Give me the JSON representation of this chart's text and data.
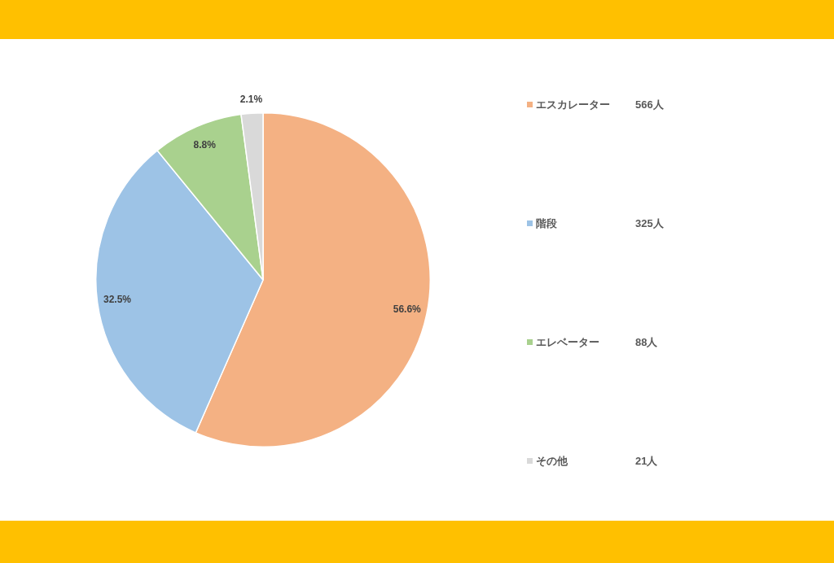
{
  "chart_data": {
    "type": "pie",
    "categories": [
      "エスカレーター",
      "階段",
      "エレベーター",
      "その他"
    ],
    "values": [
      56.6,
      32.5,
      8.8,
      2.1
    ],
    "colors": [
      "#f4b183",
      "#9dc3e6",
      "#a9d18e",
      "#d9d9d9"
    ],
    "value_labels": [
      "56.6%",
      "32.5%",
      "8.8%",
      "2.1%"
    ],
    "annotations": [
      "566人",
      "325人",
      "88人",
      "21人"
    ],
    "legend": "right"
  }
}
